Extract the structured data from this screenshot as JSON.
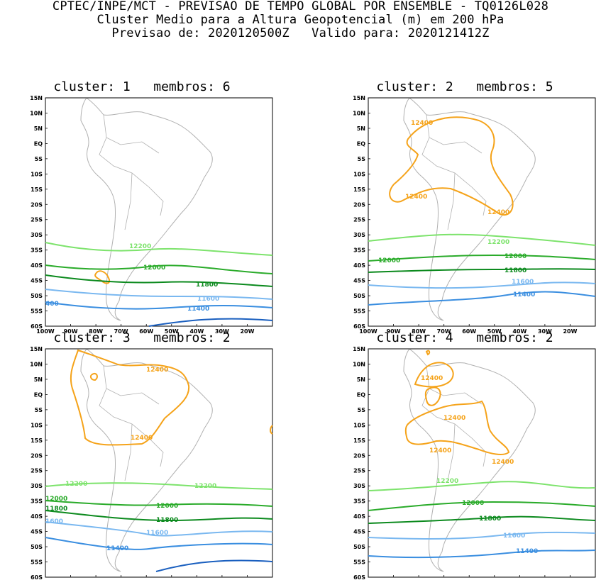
{
  "header": {
    "line1": "CPTEC/INPE/MCT - PREVISAO DE TEMPO GLOBAL POR ENSEMBLE - TQ0126L028",
    "line2": "Cluster Medio para a Altura Geopotencial (m) em 200 hPa",
    "line3": "Previsao de: 2020120500Z   Valido para: 2020121412Z"
  },
  "axes": {
    "lat_labels": [
      "15N",
      "10N",
      "5N",
      "EQ",
      "5S",
      "10S",
      "15S",
      "20S",
      "25S",
      "30S",
      "35S",
      "40S",
      "45S",
      "50S",
      "55S",
      "60S"
    ],
    "lon_labels": [
      "100W",
      "90W",
      "80W",
      "70W",
      "60W",
      "50W",
      "40W",
      "30W",
      "20W"
    ]
  },
  "colors": {
    "c12400": "#f5a31a",
    "c12200": "#7de36c",
    "c12000": "#2aab2a",
    "c11800": "#0c8a1e",
    "c11600": "#7ab8f0",
    "c11400": "#3a8ee0",
    "c11200": "#1a5fbf",
    "coast": "#b0b0b0"
  },
  "panels": [
    {
      "title": "cluster: 1   membros: 6",
      "labels": [
        "12200",
        "12000",
        "11800",
        "11600",
        "11400",
        "400"
      ]
    },
    {
      "title": "cluster: 2   membros: 5",
      "labels": [
        "12400",
        "12400",
        "12400",
        "12200",
        "12000",
        "12000",
        "11800",
        "11600",
        "11400"
      ]
    },
    {
      "title": "cluster: 3   membros: 2",
      "labels": [
        "12400",
        "12400",
        "12200",
        "12200",
        "12000",
        "12000",
        "11800",
        "11800",
        "1600",
        "11600",
        "11400"
      ]
    },
    {
      "title": "cluster: 4   membros: 2",
      "labels": [
        "12400",
        "12400",
        "12400",
        "12400",
        "12200",
        "12000",
        "11800",
        "11600",
        "11400"
      ]
    }
  ]
}
